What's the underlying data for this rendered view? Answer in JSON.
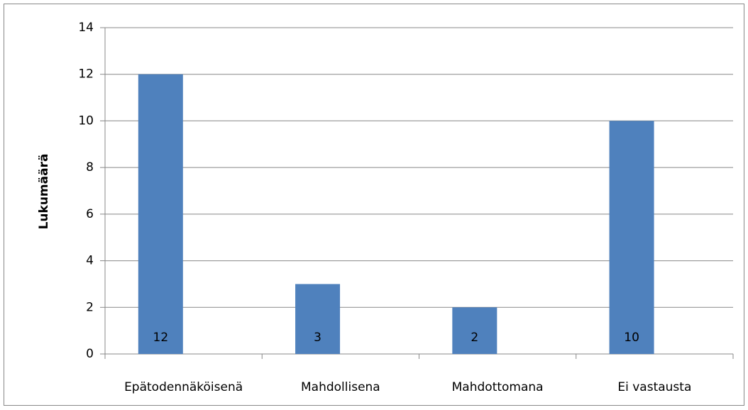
{
  "chart_data": {
    "type": "bar",
    "y_label": "Lukumäärä",
    "categories": [
      "Epätodennäköisenä",
      "Mahdollisena",
      "Mahdottomana",
      "Ei vastausta"
    ],
    "values": [
      12,
      3,
      2,
      10
    ],
    "color": "#4f81bd",
    "ylim": [
      0,
      14
    ],
    "yticks": [
      0,
      2,
      4,
      6,
      8,
      10,
      12,
      14
    ],
    "grid": true
  }
}
